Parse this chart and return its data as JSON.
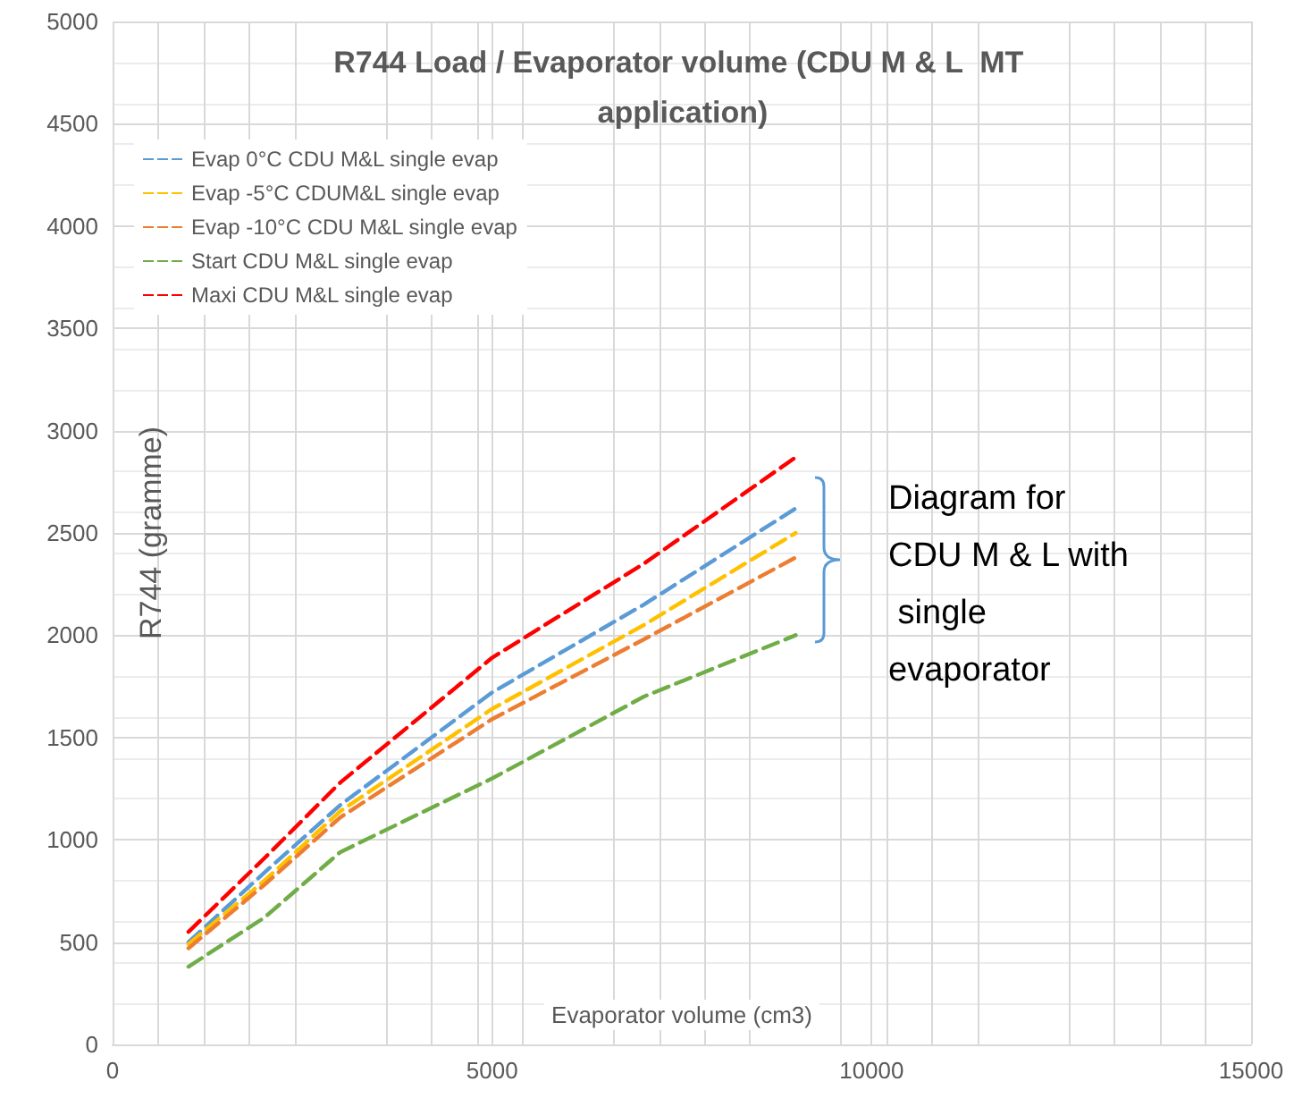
{
  "chart_data": {
    "type": "line",
    "title": "R744 Load / Evaporator volume (CDU M & L  MT application)",
    "xlabel": "Evaporator volume (cm3)",
    "ylabel": "R744 (gramme)",
    "x": [
      1000,
      2000,
      3000,
      5000,
      7000,
      9000
    ],
    "series": [
      {
        "name": "Evap 0°C CDU M&L single evap",
        "color": "#5b9bd5",
        "values": [
          500,
          840,
          1170,
          1720,
          2150,
          2620
        ]
      },
      {
        "name": "Evap -5°C CDUM&L single evap",
        "color": "#ffc000",
        "values": [
          490,
          800,
          1140,
          1640,
          2050,
          2500
        ]
      },
      {
        "name": "Evap -10°C CDU M&L single evap",
        "color": "#ed7d31",
        "values": [
          470,
          780,
          1110,
          1590,
          1980,
          2380
        ]
      },
      {
        "name": "Start CDU M&L single evap",
        "color": "#70ad47",
        "values": [
          380,
          620,
          940,
          1300,
          1700,
          2000
        ]
      },
      {
        "name": "Maxi CDU M&L single evap",
        "color": "#ff0000",
        "values": [
          550,
          910,
          1280,
          1890,
          2350,
          2870
        ]
      }
    ],
    "xlim": [
      0,
      15000
    ],
    "xticks": [
      0,
      5000,
      10000,
      15000
    ],
    "ylim": [
      0,
      5000
    ],
    "yticks": [
      0,
      500,
      1000,
      1500,
      2000,
      2500,
      3000,
      3500,
      4000,
      4500,
      5000
    ],
    "grid": true,
    "legend": "top left",
    "marker": "none",
    "line_style": "dashed",
    "annotations": [
      "Diagram for CDU M & L with single evaporator"
    ]
  }
}
